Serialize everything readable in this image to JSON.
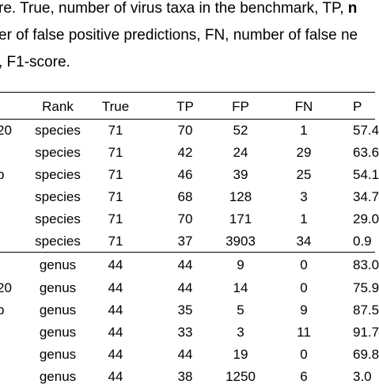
{
  "caption": {
    "line1_prefix": "re. True, number of virus taxa in the benchmark, TP,",
    "line1_bold": "n",
    "line2": "er of false positive predictions, FN, number of false ne",
    "line3": ", F1-score."
  },
  "table": {
    "headers": {
      "tool": "",
      "rank": "Rank",
      "true": "True",
      "tp": "TP",
      "fp": "FP",
      "fn": "FN",
      "p": "P"
    },
    "rows": [
      {
        "tool": "20",
        "rank": "species",
        "true": "71",
        "tp": "70",
        "fp": "52",
        "fn": "1",
        "p": "57.4"
      },
      {
        "tool": "",
        "rank": "species",
        "true": "71",
        "tp": "42",
        "fp": "24",
        "fn": "29",
        "p": "63.6"
      },
      {
        "tool": "p",
        "rank": "species",
        "true": "71",
        "tp": "46",
        "fp": "39",
        "fn": "25",
        "p": "54.1"
      },
      {
        "tool": "",
        "rank": "species",
        "true": "71",
        "tp": "68",
        "fp": "128",
        "fn": "3",
        "p": "34.7"
      },
      {
        "tool": "",
        "rank": "species",
        "true": "71",
        "tp": "70",
        "fp": "171",
        "fn": "1",
        "p": "29.0"
      },
      {
        "tool": "",
        "rank": "species",
        "true": "71",
        "tp": "37",
        "fp": "3903",
        "fn": "34",
        "p": "0.9"
      },
      {
        "tool": "",
        "rank": "genus",
        "true": "44",
        "tp": "44",
        "fp": "9",
        "fn": "0",
        "p": "83.0"
      },
      {
        "tool": "20",
        "rank": "genus",
        "true": "44",
        "tp": "44",
        "fp": "14",
        "fn": "0",
        "p": "75.9"
      },
      {
        "tool": "p",
        "rank": "genus",
        "true": "44",
        "tp": "35",
        "fp": "5",
        "fn": "9",
        "p": "87.5"
      },
      {
        "tool": "",
        "rank": "genus",
        "true": "44",
        "tp": "33",
        "fp": "3",
        "fn": "11",
        "p": "91.7"
      },
      {
        "tool": "",
        "rank": "genus",
        "true": "44",
        "tp": "44",
        "fp": "19",
        "fn": "0",
        "p": "69.8"
      },
      {
        "tool": "",
        "rank": "genus",
        "true": "44",
        "tp": "38",
        "fp": "1250",
        "fn": "6",
        "p": "3.0"
      }
    ]
  }
}
